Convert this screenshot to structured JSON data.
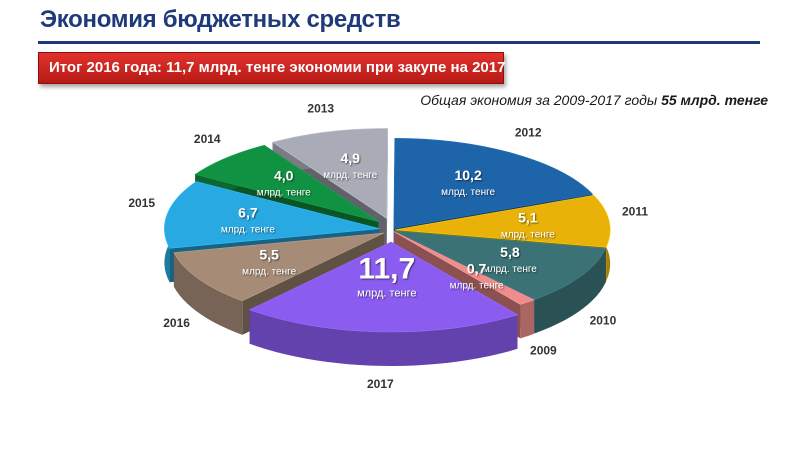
{
  "page": {
    "title": "Экономия бюджетных средств",
    "banner": "Итог  2016 года: 11,7 млрд. тенге экономии при закупе на 2017 год",
    "subtitle_prefix": "Общая экономия за 2009-2017 годы ",
    "subtitle_total": "55 млрд. тенге"
  },
  "chart_data": {
    "type": "pie",
    "title": "",
    "unit_label": "млрд. тенге",
    "slices": [
      {
        "year": "2017",
        "label": "11,7",
        "value": 11.7,
        "color": "#8b5cf0"
      },
      {
        "year": "2016",
        "label": "5,5",
        "value": 5.5,
        "color": "#a68b77"
      },
      {
        "year": "2015",
        "label": "6,7",
        "value": 6.7,
        "color": "#29a9e1"
      },
      {
        "year": "2014",
        "label": "4,0",
        "value": 4.0,
        "color": "#119142"
      },
      {
        "year": "2013",
        "label": "4,9",
        "value": 4.9,
        "color": "#a9abb6"
      },
      {
        "year": "2012",
        "label": "10,2",
        "value": 10.2,
        "color": "#1e64a9"
      },
      {
        "year": "2011",
        "label": "5,1",
        "value": 5.1,
        "color": "#e8b209"
      },
      {
        "year": "2010",
        "label": "5,8",
        "value": 5.8,
        "color": "#3a7275"
      },
      {
        "year": "2009",
        "label": "0,7",
        "value": 0.7,
        "color": "#ef8c8c"
      }
    ],
    "legend": "none"
  }
}
